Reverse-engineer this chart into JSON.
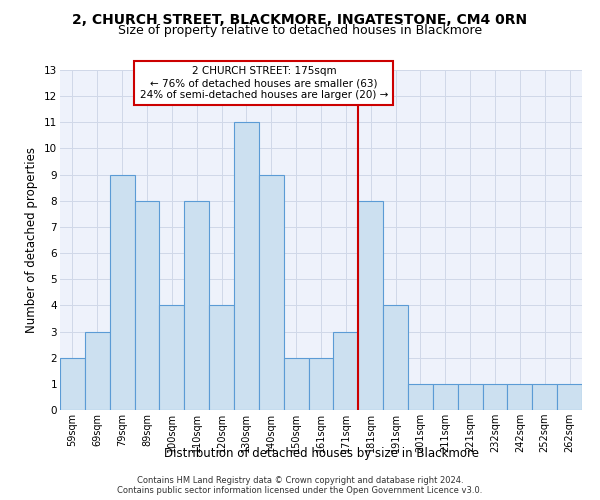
{
  "title1": "2, CHURCH STREET, BLACKMORE, INGATESTONE, CM4 0RN",
  "title2": "Size of property relative to detached houses in Blackmore",
  "xlabel": "Distribution of detached houses by size in Blackmore",
  "ylabel": "Number of detached properties",
  "categories": [
    "59sqm",
    "69sqm",
    "79sqm",
    "89sqm",
    "100sqm",
    "110sqm",
    "120sqm",
    "130sqm",
    "140sqm",
    "150sqm",
    "161sqm",
    "171sqm",
    "181sqm",
    "191sqm",
    "201sqm",
    "211sqm",
    "221sqm",
    "232sqm",
    "242sqm",
    "252sqm",
    "262sqm"
  ],
  "values": [
    2,
    3,
    9,
    8,
    4,
    8,
    4,
    11,
    9,
    2,
    2,
    3,
    8,
    4,
    1,
    1,
    1,
    1,
    1,
    1,
    1
  ],
  "bar_color": "#cce0f0",
  "bar_edgecolor": "#5b9bd5",
  "vline_index": 11.5,
  "property_label": "2 CHURCH STREET: 175sqm",
  "annotation_line1": "← 76% of detached houses are smaller (63)",
  "annotation_line2": "24% of semi-detached houses are larger (20) →",
  "vline_color": "#cc0000",
  "annotation_box_edgecolor": "#cc0000",
  "ylim": [
    0,
    13
  ],
  "yticks": [
    0,
    1,
    2,
    3,
    4,
    5,
    6,
    7,
    8,
    9,
    10,
    11,
    12,
    13
  ],
  "grid_color": "#d0d8e8",
  "background_color": "#eef2fb",
  "footer1": "Contains HM Land Registry data © Crown copyright and database right 2024.",
  "footer2": "Contains public sector information licensed under the Open Government Licence v3.0.",
  "title1_fontsize": 10,
  "title2_fontsize": 9,
  "tick_fontsize": 7,
  "ylabel_fontsize": 8.5,
  "xlabel_fontsize": 8.5,
  "footer_fontsize": 6
}
